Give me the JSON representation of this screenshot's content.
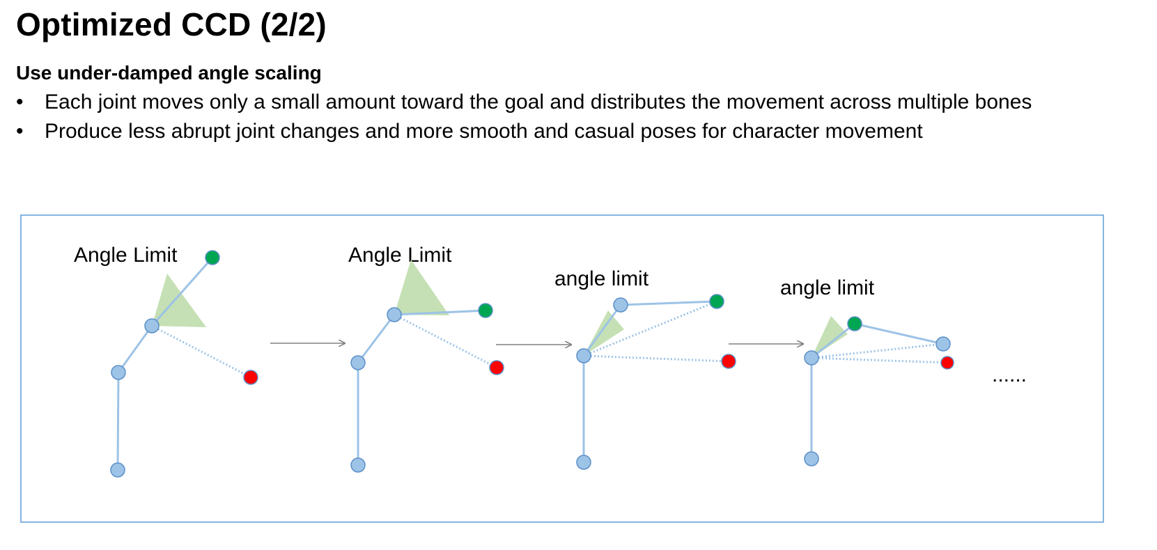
{
  "title": "Optimized CCD (2/2)",
  "subtitle": "Use under-damped angle scaling",
  "bullets": [
    "Each joint moves only a small amount toward the goal and distributes the movement across multiple bones",
    "Produce less abrupt joint changes and more smooth and casual poses for character movement"
  ],
  "bullet_marker": "•",
  "diagram": {
    "steps": [
      {
        "label": "Angle Limit"
      },
      {
        "label": "Angle Limit"
      },
      {
        "label": "angle limit"
      },
      {
        "label": "angle limit"
      }
    ],
    "ellipsis": "......",
    "colors": {
      "frame": "#5b9bd5",
      "bone": "#9dc3e6",
      "joint_fill": "#9dc3e6",
      "joint_stroke": "#5b8fc8",
      "end_effector": "#00a651",
      "target": "#ff0000",
      "angle_limit": "#c5e0b4",
      "arrow": "#808080"
    }
  }
}
